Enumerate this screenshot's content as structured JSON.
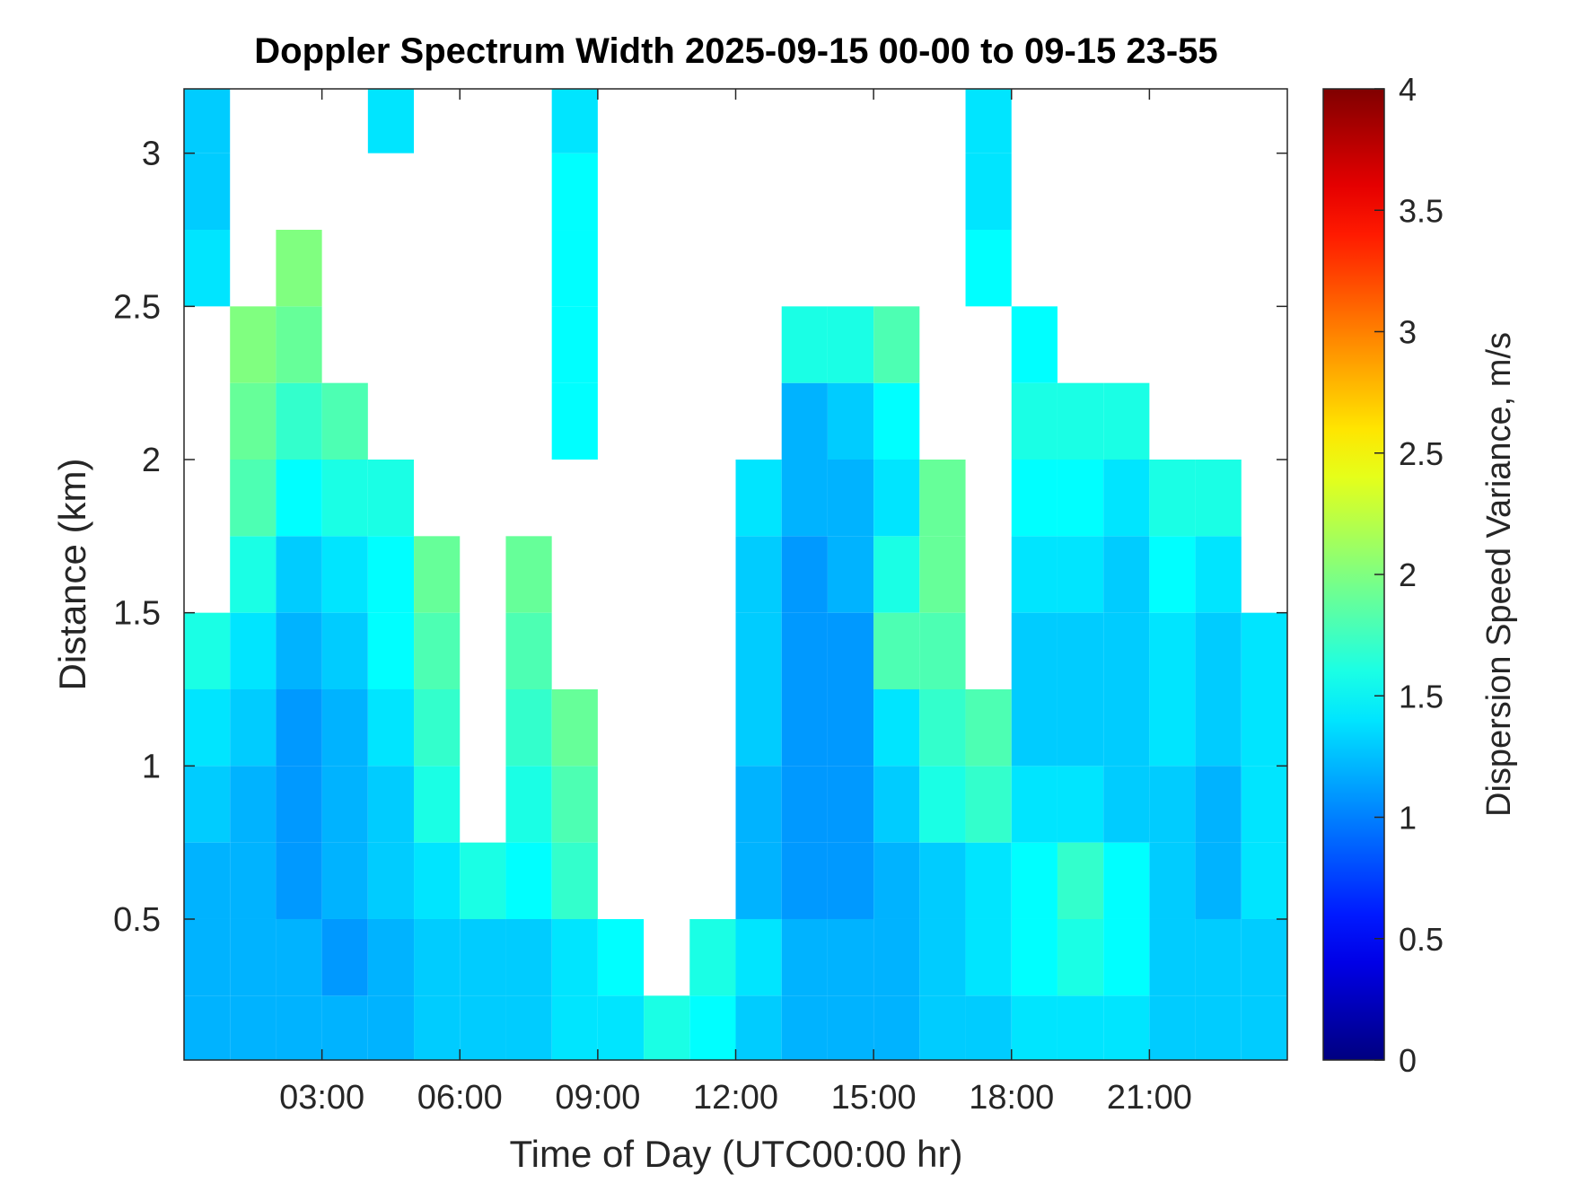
{
  "chart_data": {
    "type": "heatmap",
    "title": "Doppler Spectrum Width 2025-09-15 00-00 to 09-15 23-55",
    "x_label": "Time of Day (UTC00:00 hr)",
    "y_label": "Distance (km)",
    "colorbar_label": "Dispersion Speed Variance, m/s",
    "colormap": "jet",
    "x": [
      0.5,
      1.5,
      2.5,
      3.5,
      4.5,
      5.5,
      6.5,
      7.5,
      8.5,
      9.5,
      10.5,
      11.5,
      12.5,
      13.5,
      14.5,
      15.5,
      16.5,
      17.5,
      18.5,
      19.5,
      20.5,
      21.5,
      22.5,
      23.5
    ],
    "y": [
      0.125,
      0.375,
      0.625,
      0.875,
      1.125,
      1.375,
      1.625,
      1.875,
      2.125,
      2.375,
      2.625,
      2.875,
      3.125
    ],
    "values": [
      [
        1.2,
        1.2,
        1.2,
        1.2,
        1.2,
        1.3,
        1.3,
        1.3,
        1.4,
        1.4,
        1.6,
        1.5,
        1.3,
        1.2,
        1.2,
        1.2,
        1.3,
        1.3,
        1.4,
        1.4,
        1.4,
        1.3,
        1.3,
        1.3
      ],
      [
        1.2,
        1.2,
        1.2,
        1.1,
        1.2,
        1.3,
        1.3,
        1.3,
        1.4,
        1.5,
        null,
        1.6,
        1.4,
        1.2,
        1.2,
        1.2,
        1.3,
        1.4,
        1.5,
        1.6,
        1.5,
        1.3,
        1.3,
        1.3
      ],
      [
        1.2,
        1.2,
        1.1,
        1.2,
        1.3,
        1.4,
        1.6,
        1.5,
        1.7,
        null,
        null,
        null,
        1.2,
        1.1,
        1.1,
        1.2,
        1.3,
        1.4,
        1.5,
        1.7,
        1.5,
        1.3,
        1.2,
        1.4
      ],
      [
        1.3,
        1.2,
        1.1,
        1.2,
        1.3,
        1.6,
        null,
        1.6,
        1.8,
        null,
        null,
        null,
        1.2,
        1.1,
        1.1,
        1.3,
        1.6,
        1.7,
        1.4,
        1.4,
        1.3,
        1.3,
        1.2,
        1.4
      ],
      [
        1.4,
        1.3,
        1.1,
        1.2,
        1.4,
        1.7,
        null,
        1.7,
        1.9,
        null,
        null,
        null,
        1.3,
        1.1,
        1.1,
        1.4,
        1.7,
        1.8,
        1.3,
        1.3,
        1.3,
        1.4,
        1.3,
        1.4
      ],
      [
        1.6,
        1.4,
        1.2,
        1.3,
        1.5,
        1.8,
        null,
        1.8,
        null,
        null,
        null,
        null,
        1.3,
        1.1,
        1.1,
        1.8,
        1.8,
        null,
        1.3,
        1.3,
        1.3,
        1.4,
        1.3,
        1.4
      ],
      [
        null,
        1.6,
        1.3,
        1.4,
        1.5,
        1.9,
        null,
        1.9,
        null,
        null,
        null,
        null,
        1.3,
        1.1,
        1.2,
        1.6,
        1.9,
        null,
        1.4,
        1.4,
        1.3,
        1.5,
        1.4,
        null
      ],
      [
        null,
        1.8,
        1.5,
        1.6,
        1.6,
        null,
        null,
        null,
        null,
        null,
        null,
        null,
        1.4,
        1.2,
        1.2,
        1.4,
        1.9,
        null,
        1.5,
        1.5,
        1.4,
        1.6,
        1.6,
        null
      ],
      [
        null,
        1.9,
        1.7,
        1.8,
        null,
        null,
        null,
        null,
        1.5,
        null,
        null,
        null,
        null,
        1.2,
        1.3,
        1.5,
        null,
        null,
        1.6,
        1.6,
        1.6,
        null,
        null,
        null
      ],
      [
        null,
        2.0,
        1.9,
        null,
        null,
        null,
        null,
        null,
        1.5,
        null,
        null,
        null,
        null,
        1.6,
        1.6,
        1.8,
        null,
        null,
        1.5,
        null,
        null,
        null,
        null,
        null
      ],
      [
        1.4,
        null,
        2.0,
        null,
        null,
        null,
        null,
        null,
        1.5,
        null,
        null,
        null,
        null,
        null,
        null,
        null,
        null,
        1.5,
        null,
        null,
        null,
        null,
        null,
        null
      ],
      [
        1.3,
        null,
        null,
        null,
        null,
        null,
        null,
        null,
        1.5,
        null,
        null,
        null,
        null,
        null,
        null,
        null,
        null,
        1.4,
        null,
        null,
        null,
        null,
        null,
        null
      ],
      [
        1.3,
        null,
        null,
        null,
        1.4,
        null,
        null,
        null,
        1.4,
        null,
        null,
        null,
        null,
        null,
        null,
        null,
        null,
        1.4,
        null,
        null,
        null,
        null,
        null,
        null
      ]
    ],
    "xlim": [
      0,
      24
    ],
    "xticks": [
      {
        "value": 3,
        "label": "03:00"
      },
      {
        "value": 6,
        "label": "06:00"
      },
      {
        "value": 9,
        "label": "09:00"
      },
      {
        "value": 12,
        "label": "12:00"
      },
      {
        "value": 15,
        "label": "15:00"
      },
      {
        "value": 18,
        "label": "18:00"
      },
      {
        "value": 21,
        "label": "21:00"
      }
    ],
    "ylim": [
      0.04,
      3.21
    ],
    "yticks": [
      0.5,
      1,
      1.5,
      2,
      2.5,
      3
    ],
    "clim": [
      0,
      4
    ],
    "cticks": [
      0,
      0.5,
      1,
      1.5,
      2,
      2.5,
      3,
      3.5,
      4
    ]
  }
}
